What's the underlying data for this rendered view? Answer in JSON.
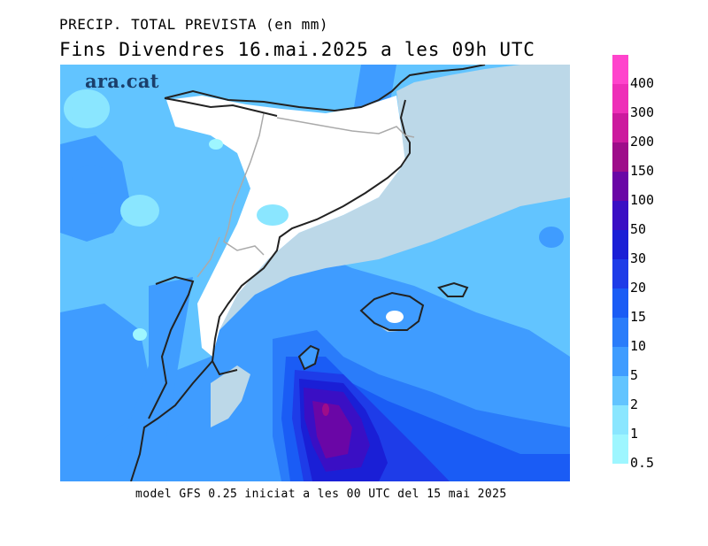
{
  "header": {
    "line1": "PRECIP. TOTAL PREVISTA (en mm)",
    "line2": "Fins Divendres 16.mai.2025 a les 09h UTC"
  },
  "map": {
    "logo_text": "ara.cat",
    "colors": {
      "land_outside_region": "#bcd8e8",
      "no_precip": "#ffffff",
      "coast": "#222222",
      "border": "#aaaaaa"
    }
  },
  "footer": {
    "model_text": "model GFS 0.25 iniciat a les 00 UTC del 15 mai 2025"
  },
  "legend": {
    "levels": [
      {
        "label": "400",
        "color": "#ff44cc"
      },
      {
        "label": "300",
        "color": "#ee2fb8"
      },
      {
        "label": "200",
        "color": "#cc1a9e"
      },
      {
        "label": "150",
        "color": "#9e0d8a"
      },
      {
        "label": "100",
        "color": "#6a06a6"
      },
      {
        "label": "50",
        "color": "#3a0fc4"
      },
      {
        "label": "30",
        "color": "#1a1fd6"
      },
      {
        "label": "20",
        "color": "#1e3ce8"
      },
      {
        "label": "15",
        "color": "#1a5cf5"
      },
      {
        "label": "10",
        "color": "#2a7cfa"
      },
      {
        "label": "5",
        "color": "#3f9cff"
      },
      {
        "label": "2",
        "color": "#62c4ff"
      },
      {
        "label": "1",
        "color": "#8ae6ff"
      },
      {
        "label": "0.5",
        "color": "#9ef6ff"
      }
    ]
  }
}
